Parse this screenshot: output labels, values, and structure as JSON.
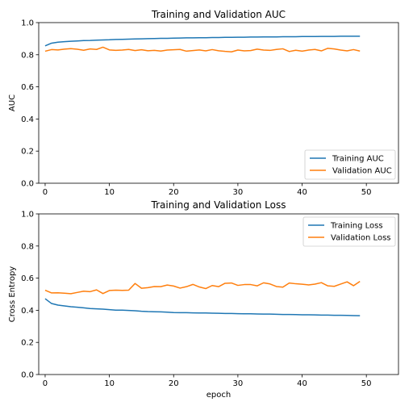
{
  "chart_data": [
    {
      "type": "line",
      "title": "Training and Validation AUC",
      "xlabel": "",
      "ylabel": "AUC",
      "xlim": [
        -1,
        55
      ],
      "ylim": [
        0,
        1
      ],
      "xticks": [
        0,
        10,
        20,
        30,
        40,
        50
      ],
      "yticks": [
        0.0,
        0.2,
        0.4,
        0.6,
        0.8,
        1.0
      ],
      "legend_position": "lower right",
      "grid": false,
      "series": [
        {
          "name": "Training AUC",
          "color": "#1f77b4",
          "x": [
            0,
            1,
            2,
            3,
            4,
            5,
            6,
            7,
            8,
            9,
            10,
            11,
            12,
            13,
            14,
            15,
            16,
            17,
            18,
            19,
            20,
            21,
            22,
            23,
            24,
            25,
            26,
            27,
            28,
            29,
            30,
            31,
            32,
            33,
            34,
            35,
            36,
            37,
            38,
            39,
            40,
            41,
            42,
            43,
            44,
            45,
            46,
            47,
            48,
            49
          ],
          "y": [
            0.855,
            0.872,
            0.878,
            0.881,
            0.884,
            0.886,
            0.888,
            0.889,
            0.891,
            0.892,
            0.893,
            0.895,
            0.896,
            0.897,
            0.898,
            0.899,
            0.9,
            0.901,
            0.902,
            0.902,
            0.903,
            0.904,
            0.905,
            0.905,
            0.906,
            0.906,
            0.907,
            0.907,
            0.908,
            0.908,
            0.909,
            0.909,
            0.91,
            0.91,
            0.911,
            0.911,
            0.911,
            0.912,
            0.912,
            0.912,
            0.913,
            0.913,
            0.913,
            0.914,
            0.914,
            0.914,
            0.915,
            0.915,
            0.915,
            0.915
          ]
        },
        {
          "name": "Validation AUC",
          "color": "#ff7f0e",
          "x": [
            0,
            1,
            2,
            3,
            4,
            5,
            6,
            7,
            8,
            9,
            10,
            11,
            12,
            13,
            14,
            15,
            16,
            17,
            18,
            19,
            20,
            21,
            22,
            23,
            24,
            25,
            26,
            27,
            28,
            29,
            30,
            31,
            32,
            33,
            34,
            35,
            36,
            37,
            38,
            39,
            40,
            41,
            42,
            43,
            44,
            45,
            46,
            47,
            48,
            49
          ],
          "y": [
            0.822,
            0.832,
            0.83,
            0.835,
            0.838,
            0.834,
            0.828,
            0.836,
            0.833,
            0.847,
            0.83,
            0.827,
            0.829,
            0.833,
            0.826,
            0.831,
            0.825,
            0.827,
            0.823,
            0.829,
            0.831,
            0.833,
            0.822,
            0.826,
            0.83,
            0.824,
            0.832,
            0.825,
            0.821,
            0.818,
            0.829,
            0.824,
            0.826,
            0.835,
            0.829,
            0.827,
            0.833,
            0.837,
            0.82,
            0.828,
            0.822,
            0.829,
            0.833,
            0.824,
            0.84,
            0.836,
            0.829,
            0.824,
            0.832,
            0.823
          ]
        }
      ]
    },
    {
      "type": "line",
      "title": "Training and Validation Loss",
      "xlabel": "epoch",
      "ylabel": "Cross Entropy",
      "xlim": [
        -1,
        55
      ],
      "ylim": [
        0,
        1
      ],
      "xticks": [
        0,
        10,
        20,
        30,
        40,
        50
      ],
      "yticks": [
        0.0,
        0.2,
        0.4,
        0.6,
        0.8,
        1.0
      ],
      "legend_position": "upper right",
      "grid": false,
      "series": [
        {
          "name": "Training Loss",
          "color": "#1f77b4",
          "x": [
            0,
            1,
            2,
            3,
            4,
            5,
            6,
            7,
            8,
            9,
            10,
            11,
            12,
            13,
            14,
            15,
            16,
            17,
            18,
            19,
            20,
            21,
            22,
            23,
            24,
            25,
            26,
            27,
            28,
            29,
            30,
            31,
            32,
            33,
            34,
            35,
            36,
            37,
            38,
            39,
            40,
            41,
            42,
            43,
            44,
            45,
            46,
            47,
            48,
            49
          ],
          "y": [
            0.472,
            0.442,
            0.432,
            0.427,
            0.422,
            0.419,
            0.415,
            0.411,
            0.409,
            0.407,
            0.404,
            0.401,
            0.401,
            0.399,
            0.397,
            0.394,
            0.392,
            0.391,
            0.39,
            0.388,
            0.386,
            0.385,
            0.385,
            0.384,
            0.383,
            0.383,
            0.382,
            0.381,
            0.38,
            0.38,
            0.379,
            0.378,
            0.378,
            0.377,
            0.376,
            0.376,
            0.375,
            0.374,
            0.374,
            0.373,
            0.372,
            0.372,
            0.371,
            0.37,
            0.37,
            0.369,
            0.369,
            0.368,
            0.367,
            0.366
          ]
        },
        {
          "name": "Validation Loss",
          "color": "#ff7f0e",
          "x": [
            0,
            1,
            2,
            3,
            4,
            5,
            6,
            7,
            8,
            9,
            10,
            11,
            12,
            13,
            14,
            15,
            16,
            17,
            18,
            19,
            20,
            21,
            22,
            23,
            24,
            25,
            26,
            27,
            28,
            29,
            30,
            31,
            32,
            33,
            34,
            35,
            36,
            37,
            38,
            39,
            40,
            41,
            42,
            43,
            44,
            45,
            46,
            47,
            48,
            49
          ],
          "y": [
            0.525,
            0.508,
            0.509,
            0.506,
            0.503,
            0.511,
            0.519,
            0.516,
            0.527,
            0.504,
            0.523,
            0.525,
            0.524,
            0.525,
            0.567,
            0.537,
            0.541,
            0.548,
            0.547,
            0.557,
            0.551,
            0.538,
            0.547,
            0.561,
            0.545,
            0.535,
            0.554,
            0.547,
            0.568,
            0.57,
            0.555,
            0.56,
            0.56,
            0.552,
            0.571,
            0.564,
            0.548,
            0.544,
            0.57,
            0.565,
            0.562,
            0.558,
            0.563,
            0.572,
            0.552,
            0.549,
            0.563,
            0.577,
            0.553,
            0.58
          ]
        }
      ]
    }
  ]
}
